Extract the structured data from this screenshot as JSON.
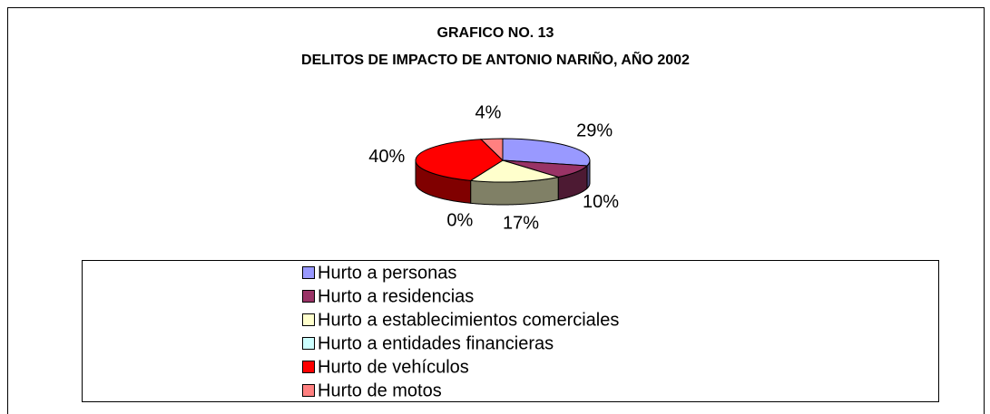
{
  "chart_data": {
    "type": "pie3d",
    "title": "GRAFICO NO. 13",
    "subtitle": "DELITOS DE IMPACTO DE ANTONIO NARIÑO, AÑO 2002",
    "categories": [
      "Hurto a personas",
      "Hurto a residencias",
      "Hurto a establecimientos comerciales",
      "Hurto a entidades financieras",
      "Hurto de vehículos",
      "Hurto de motos"
    ],
    "values": [
      29,
      10,
      17,
      0,
      40,
      4
    ],
    "value_labels": [
      "29%",
      "10%",
      "17%",
      "0%",
      "40%",
      "4%"
    ],
    "colors": [
      "#9999ff",
      "#993366",
      "#ffffcc",
      "#ccffff",
      "#ff0000",
      "#ff8080"
    ]
  }
}
